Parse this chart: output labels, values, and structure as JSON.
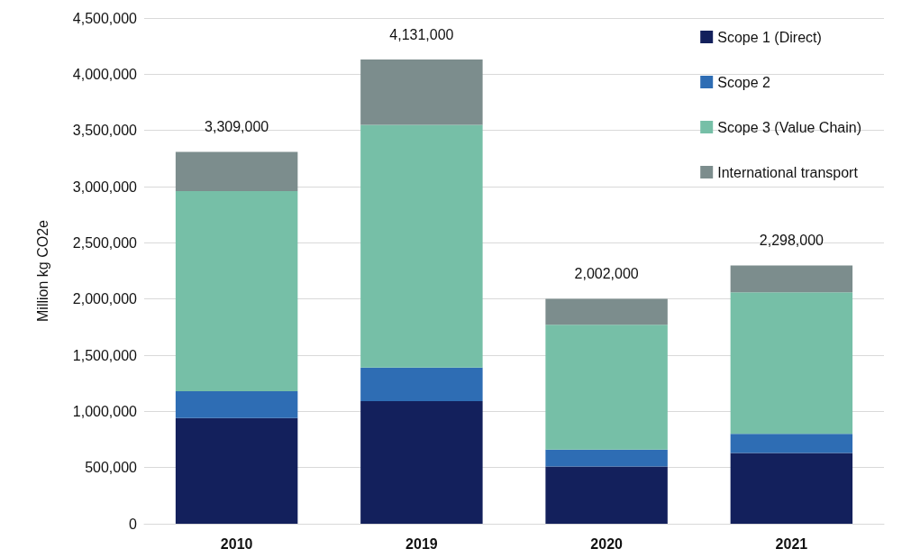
{
  "chart_data": {
    "type": "bar",
    "stacked": true,
    "ylabel": "Million kg CO2e",
    "categories": [
      "2010",
      "2019",
      "2020",
      "2021"
    ],
    "series": [
      {
        "name": "Scope 1 (Direct)",
        "color": "#13205c",
        "values": [
          940000,
          1090000,
          510000,
          630000
        ]
      },
      {
        "name": "Scope 2",
        "color": "#2e6db4",
        "values": [
          240000,
          300000,
          150000,
          170000
        ]
      },
      {
        "name": "Scope 3 (Value Chain)",
        "color": "#76bfa7",
        "values": [
          1780000,
          2160000,
          1110000,
          1260000
        ]
      },
      {
        "name": "International transport",
        "color": "#7c8d8d",
        "values": [
          349000,
          581000,
          232000,
          238000
        ]
      }
    ],
    "totals": [
      "3,309,000",
      "4,131,000",
      "2,002,000",
      "2,298,000"
    ],
    "ylim": [
      0,
      4500000
    ],
    "yticks": [
      0,
      {
        "value": 500000,
        "label": "500,000"
      },
      {
        "value": 1000000,
        "label": "1,000,000"
      },
      {
        "value": 1500000,
        "label": "1,500,000"
      },
      {
        "value": 2000000,
        "label": "2,000,000"
      },
      {
        "value": 2500000,
        "label": "2,500,000"
      },
      {
        "value": 3000000,
        "label": "3,000,000"
      },
      {
        "value": 3500000,
        "label": "3,500,000"
      },
      {
        "value": 4000000,
        "label": "4,000,000"
      },
      {
        "value": 4500000,
        "label": "4,500,000"
      }
    ],
    "grid": "y",
    "legend": "top right"
  }
}
